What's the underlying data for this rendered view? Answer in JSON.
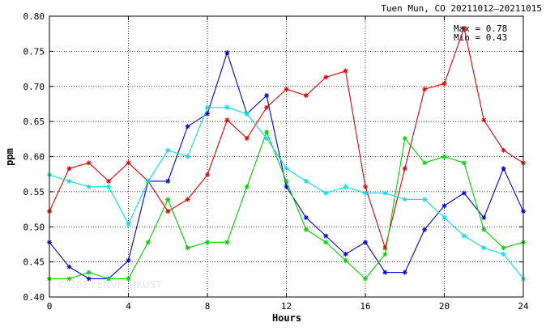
{
  "chart_data": {
    "type": "line",
    "title": "Tuen Mun, CO 20211012–20211015",
    "xlabel": "Hours",
    "ylabel": "ppm",
    "xlim": [
      0,
      24
    ],
    "ylim": [
      0.4,
      0.8
    ],
    "xticks": [
      "0",
      "4",
      "8",
      "12",
      "16",
      "20",
      "24"
    ],
    "yticks": [
      "0.40",
      "0.45",
      "0.50",
      "0.55",
      "0.60",
      "0.65",
      "0.70",
      "0.75",
      "0.80"
    ],
    "grid": true,
    "annotations": {
      "max": "Max = 0.78",
      "min": "Min = 0.43",
      "watermark": "© 2023 ENVF, HKUST"
    },
    "x": [
      0,
      1,
      2,
      3,
      4,
      5,
      6,
      7,
      8,
      9,
      10,
      11,
      12,
      13,
      14,
      15,
      16,
      17,
      18,
      19,
      20,
      21,
      22,
      23,
      24
    ],
    "series": [
      {
        "color": "#e00000",
        "values": [
          0.522,
          0.583,
          0.591,
          0.565,
          0.591,
          0.565,
          0.522,
          0.539,
          0.574,
          0.652,
          0.626,
          0.67,
          0.696,
          0.687,
          0.713,
          0.722,
          0.557,
          0.47,
          0.583,
          0.696,
          0.704,
          0.783,
          0.652,
          0.609,
          0.591
        ]
      },
      {
        "color": "#0000cc",
        "values": [
          0.478,
          0.443,
          0.426,
          0.426,
          0.452,
          0.565,
          0.565,
          0.643,
          0.661,
          0.748,
          0.661,
          0.687,
          0.557,
          0.513,
          0.487,
          0.461,
          0.478,
          0.435,
          0.435,
          0.496,
          0.53,
          0.548,
          0.513,
          0.583,
          0.522
        ]
      },
      {
        "color": "#00d000",
        "values": [
          0.426,
          0.426,
          0.435,
          0.426,
          0.426,
          0.478,
          0.539,
          0.47,
          0.478,
          0.478,
          0.557,
          0.635,
          0.565,
          0.496,
          0.478,
          0.452,
          0.426,
          0.461,
          0.626,
          0.591,
          0.6,
          0.591,
          0.496,
          0.47,
          0.478
        ]
      },
      {
        "color": "#00e0e0",
        "values": [
          0.574,
          0.565,
          0.557,
          0.557,
          0.504,
          0.565,
          0.609,
          0.6,
          0.67,
          0.67,
          0.661,
          0.626,
          0.583,
          0.565,
          0.548,
          0.557,
          0.548,
          0.548,
          0.539,
          0.539,
          0.513,
          0.487,
          0.47,
          0.461,
          0.426
        ]
      }
    ]
  }
}
